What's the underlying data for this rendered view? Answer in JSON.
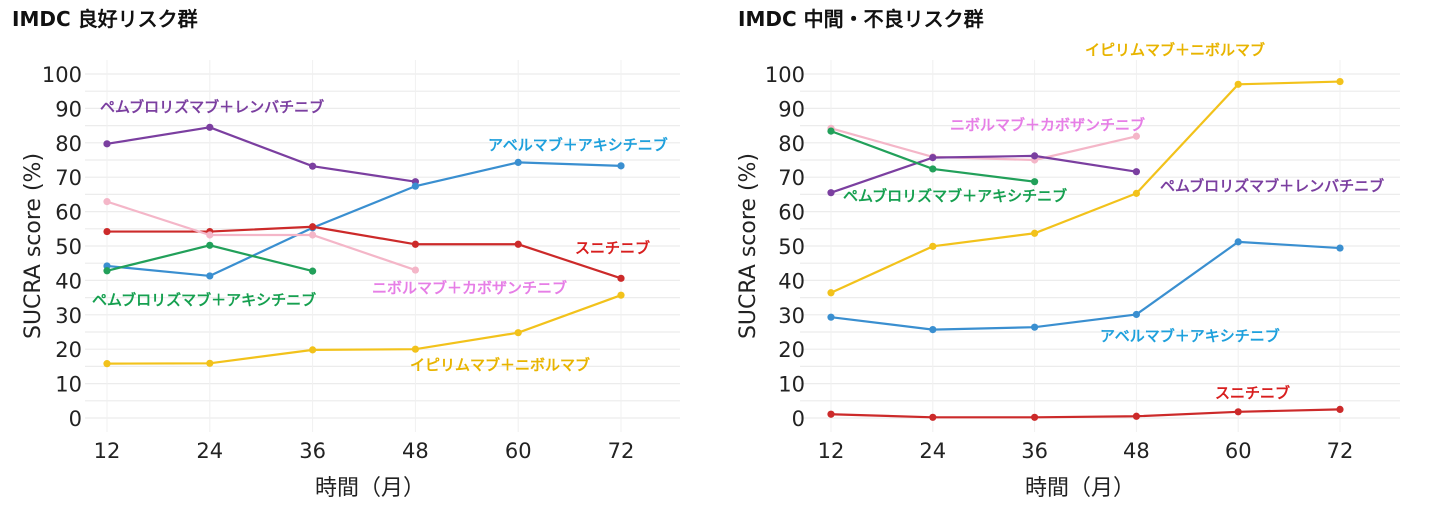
{
  "chart_data": [
    {
      "type": "line",
      "title": "IMDC 良好リスク群",
      "xlabel": "時間（月）",
      "ylabel": "SUCRA score (%)",
      "x": [
        12,
        24,
        36,
        48,
        60,
        72
      ],
      "ylim": [
        0,
        100
      ],
      "yticks": [
        0,
        10,
        20,
        30,
        40,
        50,
        60,
        70,
        80,
        90,
        100
      ],
      "grid": true,
      "series": [
        {
          "name": "ペムブロリズマブ＋レンバチニブ",
          "color": "#7b3fa0",
          "label_color": "#7b3fa0",
          "values": [
            79.7,
            84.5,
            73.2,
            68.7,
            null,
            null
          ]
        },
        {
          "name": "アベルマブ＋アキシチニブ",
          "color": "#3a8fd0",
          "label_color": "#1ea0dc",
          "values": [
            44.2,
            41.3,
            55.3,
            67.4,
            74.3,
            73.3
          ]
        },
        {
          "name": "スニチニブ",
          "color": "#cc2a2a",
          "label_color": "#d81e1e",
          "values": [
            54.2,
            54.2,
            55.6,
            50.5,
            50.5,
            40.6
          ]
        },
        {
          "name": "ニボルマブ＋カボザンチニブ",
          "color": "#f4b6c8",
          "label_color": "#e67ee6",
          "values": [
            62.9,
            53.2,
            53.2,
            43.0,
            null,
            null
          ]
        },
        {
          "name": "ペムブロリズマブ＋アキシチニブ",
          "color": "#22a05a",
          "label_color": "#16a050",
          "values": [
            42.8,
            50.2,
            42.7,
            null,
            null,
            null
          ]
        },
        {
          "name": "イピリムマブ＋ニボルマブ",
          "color": "#f2c21b",
          "label_color": "#e8b400",
          "values": [
            15.8,
            15.9,
            19.8,
            20.0,
            24.8,
            35.7
          ]
        }
      ]
    },
    {
      "type": "line",
      "title": "IMDC 中間・不良リスク群",
      "xlabel": "時間（月）",
      "ylabel": "SUCRA score (%)",
      "x": [
        12,
        24,
        36,
        48,
        60,
        72
      ],
      "ylim": [
        0,
        100
      ],
      "yticks": [
        0,
        10,
        20,
        30,
        40,
        50,
        60,
        70,
        80,
        90,
        100
      ],
      "grid": true,
      "series": [
        {
          "name": "イピリムマブ＋ニボルマブ",
          "color": "#f2c21b",
          "label_color": "#e8b400",
          "values": [
            36.4,
            49.9,
            53.7,
            65.3,
            97.0,
            97.8
          ]
        },
        {
          "name": "ニボルマブ＋カボザンチニブ",
          "color": "#f4b6c8",
          "label_color": "#e67ee6",
          "values": [
            84.2,
            75.9,
            75.0,
            81.9,
            null,
            null
          ]
        },
        {
          "name": "ペムブロリズマブ＋レンバチニブ",
          "color": "#7b3fa0",
          "label_color": "#7b3fa0",
          "values": [
            65.5,
            75.7,
            76.2,
            71.6,
            null,
            null
          ]
        },
        {
          "name": "ペムブロリズマブ＋アキシチニブ",
          "color": "#22a05a",
          "label_color": "#16a050",
          "values": [
            83.4,
            72.4,
            68.7,
            null,
            null,
            null
          ]
        },
        {
          "name": "アベルマブ＋アキシチニブ",
          "color": "#3a8fd0",
          "label_color": "#1ea0dc",
          "values": [
            29.3,
            25.7,
            26.4,
            30.1,
            51.2,
            49.4
          ]
        },
        {
          "name": "スニチニブ",
          "color": "#cc2a2a",
          "label_color": "#d81e1e",
          "values": [
            1.1,
            0.2,
            0.2,
            0.5,
            1.8,
            2.5
          ]
        }
      ]
    }
  ]
}
